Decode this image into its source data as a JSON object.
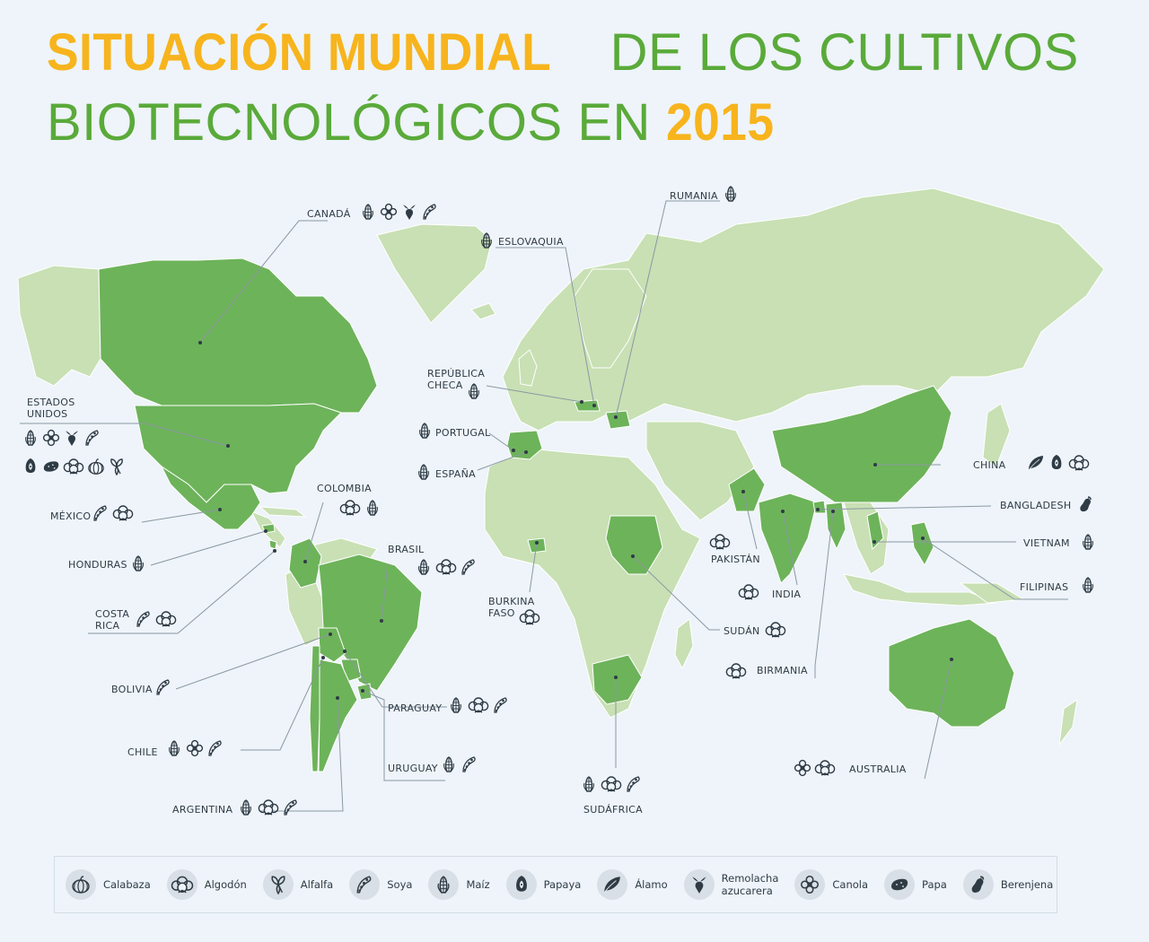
{
  "title": {
    "line1_bold": "SITUACIÓN MUNDIAL",
    "line1_rest": "DE LOS CULTIVOS",
    "line2_rest": "BIOTECNOLÓGICOS EN",
    "line2_bold": "2015"
  },
  "colors": {
    "title_yellow": "#f7b41d",
    "title_green": "#5aaa3a",
    "biotech_country": "#6db35a",
    "other_land": "#c8e0b4",
    "background": "#eef4f9",
    "icon": "#2f3b45"
  },
  "countries": {
    "canada": {
      "label": "CANADÁ",
      "crops": [
        "maize-icon",
        "canola-icon",
        "sugar-beet-icon",
        "soy-icon"
      ]
    },
    "usa": {
      "label_1": "ESTADOS",
      "label_2": "UNIDOS",
      "crops": [
        "maize-icon",
        "canola-icon",
        "sugar-beet-icon",
        "soy-icon",
        "papaya-icon",
        "potato-icon",
        "cotton-icon",
        "squash-icon",
        "alfalfa-icon"
      ]
    },
    "mexico": {
      "label": "MÉXICO",
      "crops": [
        "soy-icon",
        "cotton-icon"
      ]
    },
    "honduras": {
      "label": "HONDURAS",
      "crops": [
        "maize-icon"
      ]
    },
    "costa_rica": {
      "label_1": "COSTA",
      "label_2": "RICA",
      "crops": [
        "soy-icon",
        "cotton-icon"
      ]
    },
    "colombia": {
      "label": "COLOMBIA",
      "crops": [
        "cotton-icon",
        "maize-icon"
      ]
    },
    "brasil": {
      "label": "BRASIL",
      "crops": [
        "maize-icon",
        "cotton-icon",
        "soy-icon"
      ]
    },
    "bolivia": {
      "label": "BOLIVIA",
      "crops": [
        "soy-icon"
      ]
    },
    "paraguay": {
      "label": "PARAGUAY",
      "crops": [
        "maize-icon",
        "cotton-icon",
        "soy-icon"
      ]
    },
    "chile": {
      "label": "CHILE",
      "crops": [
        "maize-icon",
        "canola-icon",
        "soy-icon"
      ]
    },
    "uruguay": {
      "label": "URUGUAY",
      "crops": [
        "maize-icon",
        "soy-icon"
      ]
    },
    "argentina": {
      "label": "ARGENTINA",
      "crops": [
        "maize-icon",
        "cotton-icon",
        "soy-icon"
      ]
    },
    "portugal": {
      "label": "PORTUGAL",
      "crops": [
        "maize-icon"
      ]
    },
    "espana": {
      "label": "ESPAÑA",
      "crops": [
        "maize-icon"
      ]
    },
    "republica_checa": {
      "label_1": "REPÚBLICA",
      "label_2": "CHECA",
      "crops": [
        "maize-icon"
      ]
    },
    "eslovaquia": {
      "label": "ESLOVAQUIA",
      "crops": [
        "maize-icon"
      ]
    },
    "rumania": {
      "label": "RUMANIA",
      "crops": [
        "maize-icon"
      ]
    },
    "burkina_faso": {
      "label_1": "BURKINA",
      "label_2": "FASO",
      "crops": [
        "cotton-icon"
      ]
    },
    "sudan": {
      "label": "SUDÁN",
      "crops": [
        "cotton-icon"
      ]
    },
    "sudafrica": {
      "label": "SUDÁFRICA",
      "crops": [
        "maize-icon",
        "cotton-icon",
        "soy-icon"
      ]
    },
    "pakistan": {
      "label": "PAKISTÁN",
      "crops": [
        "cotton-icon"
      ]
    },
    "india": {
      "label": "INDIA",
      "crops": [
        "cotton-icon"
      ]
    },
    "birmania": {
      "label": "BIRMANIA",
      "crops": [
        "cotton-icon"
      ]
    },
    "china": {
      "label": "CHINA",
      "crops": [
        "poplar-icon",
        "papaya-icon",
        "cotton-icon"
      ]
    },
    "bangladesh": {
      "label": "BANGLADESH",
      "crops": [
        "eggplant-icon"
      ]
    },
    "vietnam": {
      "label": "VIETNAM",
      "crops": [
        "maize-icon"
      ]
    },
    "filipinas": {
      "label": "FILIPINAS",
      "crops": [
        "maize-icon"
      ]
    },
    "australia": {
      "label": "AUSTRALIA",
      "crops": [
        "canola-icon",
        "cotton-icon"
      ]
    }
  },
  "legend": [
    {
      "icon": "squash-icon",
      "label": "Calabaza"
    },
    {
      "icon": "cotton-icon",
      "label": "Algodón"
    },
    {
      "icon": "alfalfa-icon",
      "label": "Alfalfa"
    },
    {
      "icon": "soy-icon",
      "label": "Soya"
    },
    {
      "icon": "maize-icon",
      "label": "Maíz"
    },
    {
      "icon": "papaya-icon",
      "label": "Papaya"
    },
    {
      "icon": "poplar-icon",
      "label": "Álamo"
    },
    {
      "icon": "sugar-beet-icon",
      "label_1": "Remolacha",
      "label_2": "azucarera"
    },
    {
      "icon": "canola-icon",
      "label": "Canola"
    },
    {
      "icon": "potato-icon",
      "label": "Papa"
    },
    {
      "icon": "eggplant-icon",
      "label": "Berenjena"
    }
  ]
}
